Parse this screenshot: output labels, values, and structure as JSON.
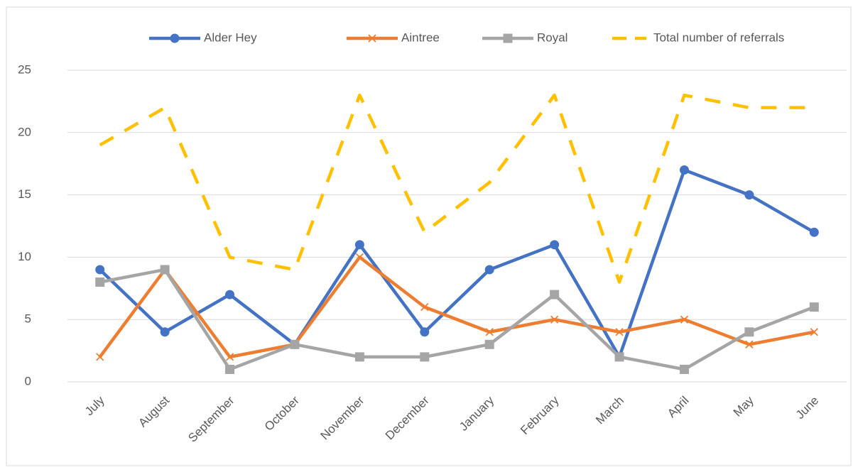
{
  "chart_data": {
    "type": "line",
    "categories": [
      "July",
      "August",
      "September",
      "October",
      "November",
      "December",
      "January",
      "February",
      "March",
      "April",
      "May",
      "June"
    ],
    "series": [
      {
        "name": "Alder Hey",
        "color": "#4472c4",
        "marker": "circle",
        "values": [
          9,
          4,
          7,
          3,
          11,
          4,
          9,
          11,
          2,
          17,
          15,
          12
        ]
      },
      {
        "name": "Aintree",
        "color": "#ed7d31",
        "marker": "x",
        "values": [
          2,
          9,
          2,
          3,
          10,
          6,
          4,
          5,
          4,
          5,
          3,
          4
        ]
      },
      {
        "name": "Royal",
        "color": "#a5a5a5",
        "marker": "square",
        "values": [
          8,
          9,
          1,
          3,
          2,
          2,
          3,
          7,
          2,
          1,
          4,
          6
        ]
      },
      {
        "name": "Total number of referrals",
        "color": "#ffc000",
        "dashed": true,
        "values": [
          19,
          22,
          10,
          9,
          23,
          12,
          16,
          23,
          8,
          23,
          22,
          22
        ]
      }
    ],
    "ylim": [
      0,
      25
    ],
    "yticks": [
      0,
      5,
      10,
      15,
      20,
      25
    ],
    "grid": true,
    "legend": "top"
  }
}
